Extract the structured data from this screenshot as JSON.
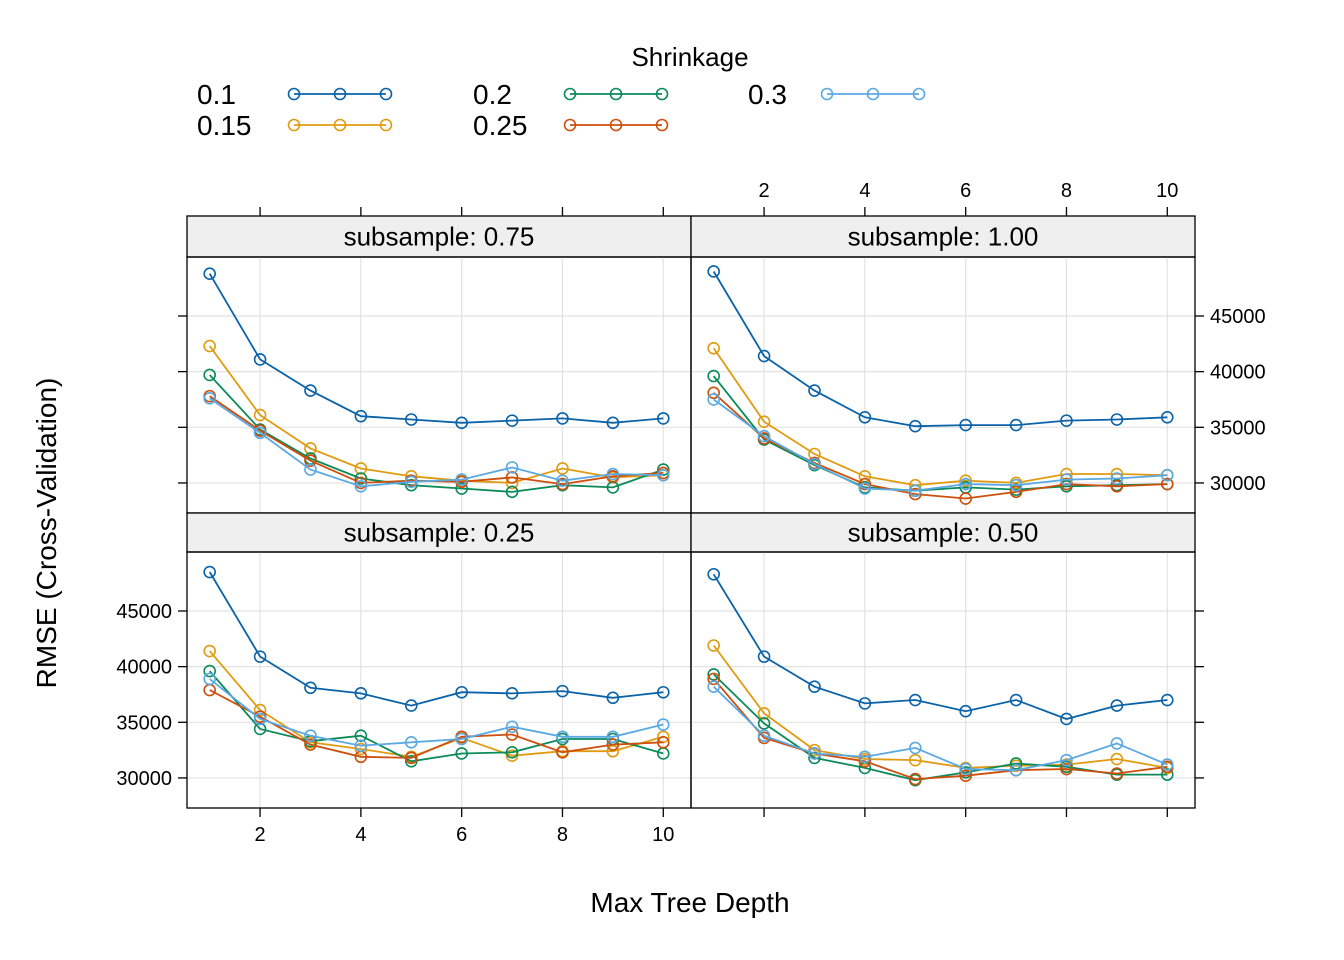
{
  "colors": {
    "0.1": "#0a62a8",
    "0.15": "#e09b10",
    "0.2": "#0b8a5a",
    "0.25": "#cc4f0c",
    "0.3": "#5aa9e2",
    "strip_bg": "#efefef",
    "grid": "#e2e2e2"
  },
  "chart_data": {
    "type": "line",
    "title": "",
    "xlabel": "Max Tree Depth",
    "ylabel": "RMSE (Cross-Validation)",
    "legend_title": "Shrinkage",
    "legend_position": "top",
    "grid": true,
    "x": [
      1,
      2,
      3,
      4,
      5,
      6,
      7,
      8,
      9,
      10
    ],
    "xticks": [
      2,
      4,
      6,
      8,
      10
    ],
    "xlim": [
      0.55,
      10.55
    ],
    "yticks": [
      30000,
      35000,
      40000,
      45000
    ],
    "ylim": [
      27300,
      50300
    ],
    "legend": [
      "0.1",
      "0.15",
      "0.2",
      "0.25",
      "0.3"
    ],
    "panels": [
      {
        "label": "subsample: 0.75",
        "series": [
          {
            "name": "0.1",
            "values": [
              48800,
              41100,
              38300,
              36000,
              35700,
              35400,
              35600,
              35800,
              35400,
              35800
            ]
          },
          {
            "name": "0.15",
            "values": [
              42300,
              36100,
              33100,
              31300,
              30600,
              30200,
              30000,
              31300,
              30500,
              30700
            ]
          },
          {
            "name": "0.2",
            "values": [
              39700,
              34800,
              32200,
              30400,
              29800,
              29500,
              29200,
              29800,
              29600,
              31200
            ]
          },
          {
            "name": "0.25",
            "values": [
              37800,
              34700,
              32000,
              30000,
              30200,
              30100,
              30500,
              29900,
              30600,
              30900
            ]
          },
          {
            "name": "0.3",
            "values": [
              37600,
              34500,
              31200,
              29700,
              30100,
              30300,
              31400,
              30200,
              30800,
              30700
            ]
          }
        ]
      },
      {
        "label": "subsample: 1.00",
        "series": [
          {
            "name": "0.1",
            "values": [
              49000,
              41400,
              38300,
              35900,
              35100,
              35200,
              35200,
              35600,
              35700,
              35900
            ]
          },
          {
            "name": "0.15",
            "values": [
              42100,
              35500,
              32600,
              30600,
              29800,
              30200,
              30000,
              30800,
              30800,
              30700
            ]
          },
          {
            "name": "0.2",
            "values": [
              39600,
              33900,
              31600,
              29600,
              29300,
              29600,
              29400,
              29700,
              29800,
              29900
            ]
          },
          {
            "name": "0.25",
            "values": [
              38100,
              34000,
              31800,
              29900,
              29000,
              28600,
              29200,
              29900,
              29700,
              29900
            ]
          },
          {
            "name": "0.3",
            "values": [
              37500,
              34200,
              31700,
              29500,
              29300,
              29900,
              29800,
              30300,
              30400,
              30700
            ]
          }
        ]
      },
      {
        "label": "subsample: 0.25",
        "series": [
          {
            "name": "0.1",
            "values": [
              48500,
              40900,
              38100,
              37600,
              36500,
              37700,
              37600,
              37800,
              37200,
              37700
            ]
          },
          {
            "name": "0.15",
            "values": [
              41400,
              36100,
              33200,
              32600,
              31900,
              33600,
              32000,
              32400,
              32400,
              33700
            ]
          },
          {
            "name": "0.2",
            "values": [
              39600,
              34400,
              33300,
              33800,
              31500,
              32200,
              32300,
              33500,
              33500,
              32200
            ]
          },
          {
            "name": "0.25",
            "values": [
              37900,
              35500,
              33000,
              31900,
              31800,
              33700,
              33900,
              32300,
              33000,
              33200
            ]
          },
          {
            "name": "0.3",
            "values": [
              38900,
              35300,
              33800,
              32900,
              33200,
              33500,
              34600,
              33700,
              33700,
              34800
            ]
          }
        ]
      },
      {
        "label": "subsample: 0.50",
        "series": [
          {
            "name": "0.1",
            "values": [
              48300,
              40900,
              38200,
              36700,
              37000,
              36000,
              37000,
              35300,
              36500,
              37000
            ]
          },
          {
            "name": "0.15",
            "values": [
              41900,
              35800,
              32500,
              31700,
              31600,
              30900,
              31100,
              31200,
              31700,
              30900
            ]
          },
          {
            "name": "0.2",
            "values": [
              39300,
              34900,
              31800,
              30900,
              29800,
              30500,
              31300,
              31000,
              30300,
              30300
            ]
          },
          {
            "name": "0.25",
            "values": [
              38900,
              33600,
              32200,
              31500,
              29900,
              30200,
              30700,
              30800,
              30400,
              31000
            ]
          },
          {
            "name": "0.3",
            "values": [
              38200,
              33800,
              32200,
              31900,
              32700,
              30800,
              30700,
              31600,
              33100,
              31200
            ]
          }
        ]
      }
    ]
  }
}
